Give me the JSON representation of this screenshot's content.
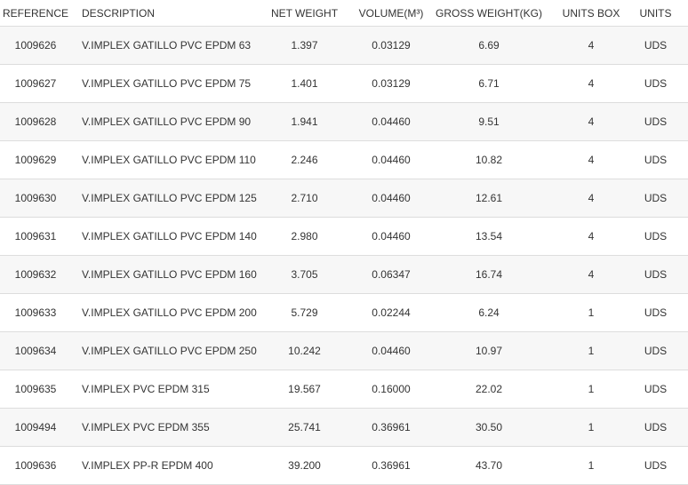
{
  "table": {
    "header": [
      "REFERENCE",
      "DESCRIPTION",
      "NET WEIGHT",
      "VOLUME(M³)",
      "GROSS WEIGHT(KG)",
      "UNITS BOX",
      "UNITS"
    ],
    "rows": [
      [
        "1009626",
        "V.IMPLEX GATILLO PVC EPDM 63",
        "1.397",
        "0.03129",
        "6.69",
        "4",
        "UDS"
      ],
      [
        "1009627",
        "V.IMPLEX GATILLO PVC EPDM 75",
        "1.401",
        "0.03129",
        "6.71",
        "4",
        "UDS"
      ],
      [
        "1009628",
        "V.IMPLEX GATILLO PVC EPDM 90",
        "1.941",
        "0.04460",
        "9.51",
        "4",
        "UDS"
      ],
      [
        "1009629",
        "V.IMPLEX GATILLO PVC EPDM 110",
        "2.246",
        "0.04460",
        "10.82",
        "4",
        "UDS"
      ],
      [
        "1009630",
        "V.IMPLEX GATILLO PVC EPDM 125",
        "2.710",
        "0.04460",
        "12.61",
        "4",
        "UDS"
      ],
      [
        "1009631",
        "V.IMPLEX GATILLO PVC EPDM 140",
        "2.980",
        "0.04460",
        "13.54",
        "4",
        "UDS"
      ],
      [
        "1009632",
        "V.IMPLEX GATILLO PVC EPDM 160",
        "3.705",
        "0.06347",
        "16.74",
        "4",
        "UDS"
      ],
      [
        "1009633",
        "V.IMPLEX GATILLO PVC EPDM 200",
        "5.729",
        "0.02244",
        "6.24",
        "1",
        "UDS"
      ],
      [
        "1009634",
        "V.IMPLEX GATILLO PVC EPDM 250",
        "10.242",
        "0.04460",
        "10.97",
        "1",
        "UDS"
      ],
      [
        "1009635",
        "V.IMPLEX PVC EPDM 315",
        "19.567",
        "0.16000",
        "22.02",
        "1",
        "UDS"
      ],
      [
        "1009494",
        "V.IMPLEX PVC EPDM 355",
        "25.741",
        "0.36961",
        "30.50",
        "1",
        "UDS"
      ],
      [
        "1009636",
        "V.IMPLEX PP-R EPDM 400",
        "39.200",
        "0.36961",
        "43.70",
        "1",
        "UDS"
      ]
    ]
  }
}
